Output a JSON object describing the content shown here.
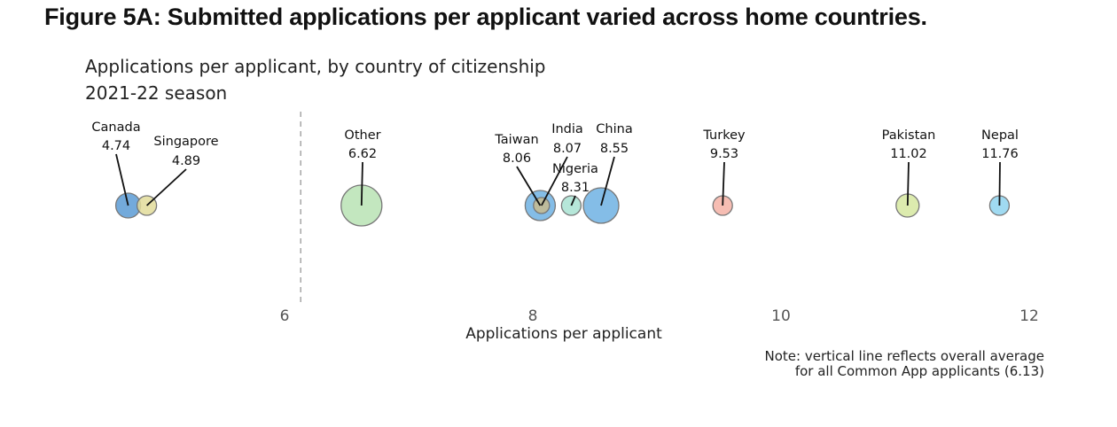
{
  "figure_title": "Figure 5A: Submitted applications per applicant varied across home countries.",
  "note": {
    "line1": "Note: vertical line reflects overall average",
    "line2": "for all Common App applicants (6.13)"
  },
  "chart_data": {
    "type": "scatter",
    "title": "Applications per applicant, by country of citizenship",
    "subtitle": "2021-22 season",
    "xlabel": "Applications per applicant",
    "ylabel": "",
    "xlim": [
      4.1,
      12.2
    ],
    "xticks": [
      6,
      8,
      10,
      12
    ],
    "grid": false,
    "reference_line": {
      "value": 6.13,
      "style": "dashed"
    },
    "points": [
      {
        "label": "Canada",
        "value_label": "4.74",
        "x": 4.74,
        "color": "#5b9bd5"
      },
      {
        "label": "Singapore",
        "value_label": "4.89",
        "x": 4.89,
        "color": "#e2dc9a"
      },
      {
        "label": "Other",
        "value_label": "6.62",
        "x": 6.62,
        "color": "#b9e3b4"
      },
      {
        "label": "Taiwan",
        "value_label": "8.06",
        "x": 8.06,
        "color": "#6fb2e3"
      },
      {
        "label": "India",
        "value_label": "8.07",
        "x": 8.07,
        "color": "#c8bb8d"
      },
      {
        "label": "Nigeria",
        "value_label": "8.31",
        "x": 8.31,
        "color": "#a9e3d2"
      },
      {
        "label": "China",
        "value_label": "8.55",
        "x": 8.55,
        "color": "#6fb2e3"
      },
      {
        "label": "Turkey",
        "value_label": "9.53",
        "x": 9.53,
        "color": "#f5b2a6"
      },
      {
        "label": "Pakistan",
        "value_label": "11.02",
        "x": 11.02,
        "color": "#d6e8a0"
      },
      {
        "label": "Nepal",
        "value_label": "11.76",
        "x": 11.76,
        "color": "#8fd4ee"
      }
    ]
  }
}
